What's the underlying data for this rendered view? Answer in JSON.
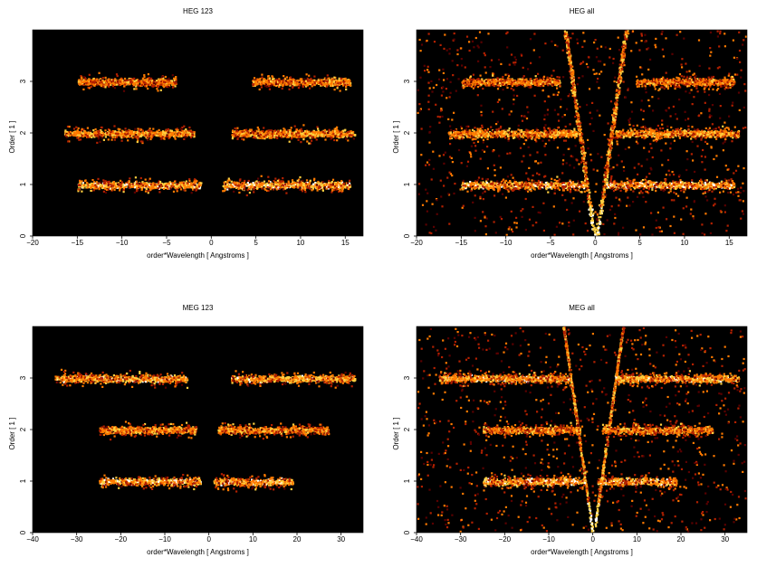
{
  "chart_data": [
    {
      "type": "heatmap",
      "title": "HEG 123",
      "xlabel": "order*Wavelength [ Angstroms ]",
      "ylabel": "Order [ 1 ]",
      "xlim": [
        -20,
        17
      ],
      "ylim": [
        0,
        4
      ],
      "xticks": [
        -20,
        -15,
        -10,
        -5,
        0,
        5,
        10,
        15
      ],
      "yticks": [
        0,
        1,
        2,
        3
      ],
      "colormap": [
        "#000000",
        "#5a0000",
        "#b22000",
        "#ff7a00",
        "#ffd040",
        "#ffffff"
      ],
      "grid": false,
      "bands": [
        {
          "order": 1,
          "x_ranges": [
            [
              -15,
              -1.2
            ],
            [
              1.2,
              15.5
            ]
          ],
          "intensity": 0.95
        },
        {
          "order": 2,
          "x_ranges": [
            [
              -16.5,
              -2
            ],
            [
              2.2,
              16
            ]
          ],
          "intensity": 0.85
        },
        {
          "order": 3,
          "x_ranges": [
            [
              -15,
              -4
            ],
            [
              4.5,
              15.5
            ]
          ],
          "intensity": 0.75
        }
      ],
      "background_noise": 0.0,
      "zero_order_vee": false
    },
    {
      "type": "heatmap",
      "title": "HEG all",
      "xlabel": "order*Wavelength [ Angstroms ]",
      "ylabel": "Order [ 1 ]",
      "xlim": [
        -20,
        17
      ],
      "ylim": [
        0,
        4
      ],
      "xticks": [
        -20,
        -15,
        -10,
        -5,
        0,
        5,
        10,
        15
      ],
      "yticks": [
        0,
        1,
        2,
        3
      ],
      "colormap": [
        "#000000",
        "#5a0000",
        "#b22000",
        "#ff7a00",
        "#ffd040",
        "#ffffff"
      ],
      "grid": false,
      "bands": [
        {
          "order": 1,
          "x_ranges": [
            [
              -15,
              -1.2
            ],
            [
              1.2,
              15.5
            ]
          ],
          "intensity": 0.95
        },
        {
          "order": 2,
          "x_ranges": [
            [
              -16.5,
              -2
            ],
            [
              2.2,
              16
            ]
          ],
          "intensity": 0.85
        },
        {
          "order": 3,
          "x_ranges": [
            [
              -15,
              -4
            ],
            [
              4.5,
              15.5
            ]
          ],
          "intensity": 0.75
        }
      ],
      "background_noise": 0.35,
      "zero_order_vee": true
    },
    {
      "type": "heatmap",
      "title": "MEG 123",
      "xlabel": "order*Wavelength [ Angstroms ]",
      "ylabel": "Order [ 1 ]",
      "xlim": [
        -40,
        35
      ],
      "ylim": [
        0,
        4
      ],
      "xticks": [
        -40,
        -30,
        -20,
        -10,
        0,
        10,
        20,
        30
      ],
      "yticks": [
        0,
        1,
        2,
        3
      ],
      "colormap": [
        "#000000",
        "#5a0000",
        "#b22000",
        "#ff7a00",
        "#ffd040",
        "#ffffff"
      ],
      "grid": false,
      "bands": [
        {
          "order": 1,
          "x_ranges": [
            [
              -25,
              -2
            ],
            [
              1,
              19
            ]
          ],
          "intensity": 0.95
        },
        {
          "order": 2,
          "x_ranges": [
            [
              -25,
              -3
            ],
            [
              2,
              27
            ]
          ],
          "intensity": 0.8
        },
        {
          "order": 3,
          "x_ranges": [
            [
              -35,
              -5
            ],
            [
              5,
              33
            ]
          ],
          "intensity": 0.9
        }
      ],
      "background_noise": 0.0,
      "zero_order_vee": false
    },
    {
      "type": "heatmap",
      "title": "MEG all",
      "xlabel": "order*Wavelength [ Angstroms ]",
      "ylabel": "Order [ 1 ]",
      "xlim": [
        -40,
        35
      ],
      "ylim": [
        0,
        4
      ],
      "xticks": [
        -40,
        -30,
        -20,
        -10,
        0,
        10,
        20,
        30
      ],
      "yticks": [
        0,
        1,
        2,
        3
      ],
      "colormap": [
        "#000000",
        "#5a0000",
        "#b22000",
        "#ff7a00",
        "#ffd040",
        "#ffffff"
      ],
      "grid": false,
      "bands": [
        {
          "order": 1,
          "x_ranges": [
            [
              -25,
              -2
            ],
            [
              1,
              19
            ]
          ],
          "intensity": 0.95
        },
        {
          "order": 2,
          "x_ranges": [
            [
              -25,
              -3
            ],
            [
              2,
              27
            ]
          ],
          "intensity": 0.8
        },
        {
          "order": 3,
          "x_ranges": [
            [
              -35,
              -5
            ],
            [
              5,
              33
            ]
          ],
          "intensity": 0.9
        }
      ],
      "background_noise": 0.35,
      "zero_order_vee": true
    }
  ]
}
